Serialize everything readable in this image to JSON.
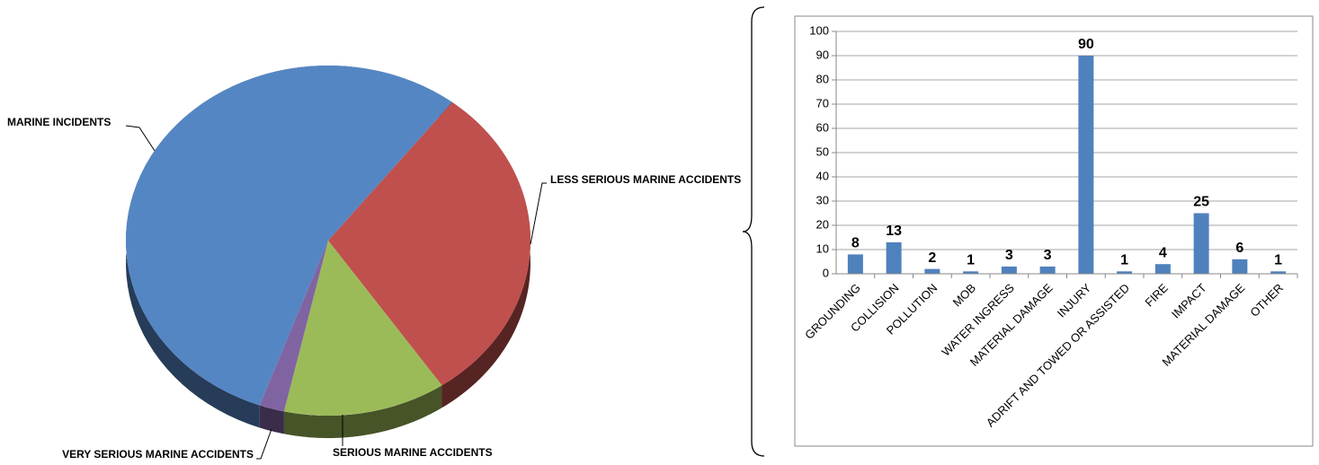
{
  "chart_data": [
    {
      "type": "pie",
      "categories": [
        "MARINE INCIDENTS",
        "LESS SERIOUS MARINE ACCIDENTS",
        "SERIOUS MARINE ACCIDENTS",
        "VERY SERIOUS MARINE ACCIDENTS"
      ],
      "values": [
        55,
        30,
        13,
        2
      ],
      "colors": [
        "#5586c4",
        "#c0504d",
        "#9bbb59",
        "#8064a2"
      ]
    },
    {
      "type": "bar",
      "categories": [
        "GROUNDING",
        "COLLISION",
        "POLLUTION",
        "MOB",
        "WATER INGRESS",
        "MATERIAL DAMAGE",
        "INJURY",
        "ADRIFT AND TOWED OR ASSISTED",
        "FIRE",
        "IMPACT",
        "MATERIAL DAMAGE",
        "OTHER"
      ],
      "values": [
        8,
        13,
        2,
        1,
        3,
        3,
        90,
        1,
        4,
        25,
        6,
        1
      ],
      "color": "#4f81bd",
      "ylim": [
        0,
        100
      ],
      "yticks": [
        0,
        10,
        20,
        30,
        40,
        50,
        60,
        70,
        80,
        90,
        100
      ],
      "grid": true
    }
  ]
}
